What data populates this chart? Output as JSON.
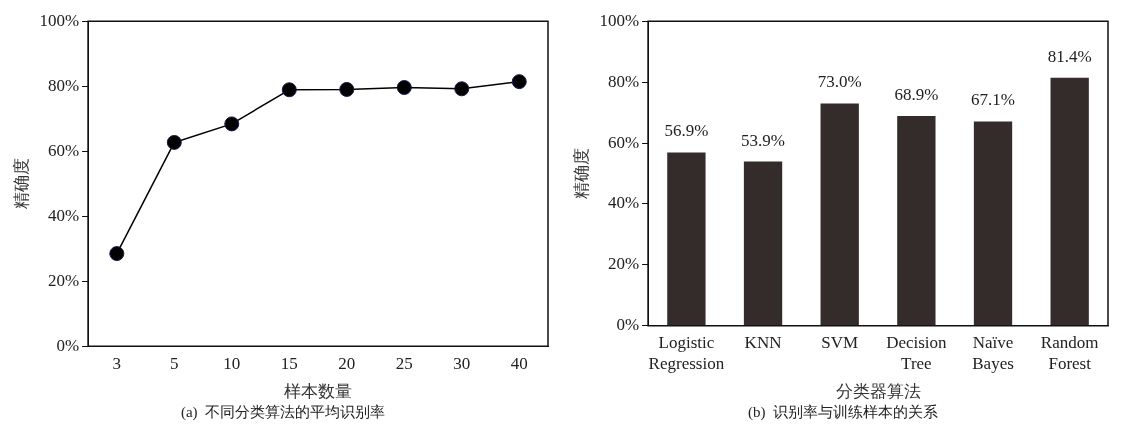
{
  "chart_data": [
    {
      "type": "line",
      "categories": [
        "3",
        "5",
        "10",
        "15",
        "20",
        "25",
        "30",
        "40"
      ],
      "series": [
        {
          "color": "#000000",
          "values": [
            28.5,
            62.7,
            68.4,
            78.9,
            79.0,
            79.6,
            79.2,
            81.4
          ]
        }
      ],
      "xlabel": "样本数量",
      "ylabel": "精确度",
      "ylim": [
        0,
        100
      ],
      "yticks": [
        {
          "value": 0,
          "label": "0%"
        },
        {
          "value": 20,
          "label": "20%"
        },
        {
          "value": 40,
          "label": "40%"
        },
        {
          "value": 60,
          "label": "60%"
        },
        {
          "value": 80,
          "label": "80%"
        },
        {
          "value": 100,
          "label": "100%"
        }
      ],
      "marker": "circle",
      "line_style": "solid",
      "grid": false,
      "legend": false,
      "annotations": [
        "(a)  不同分类算法的平均识别率"
      ]
    },
    {
      "type": "bar",
      "categories": [
        "Logistic\nRegression",
        "KNN",
        "SVM",
        "Decision\nTree",
        "Naïve\nBayes",
        "Random\nForest"
      ],
      "values": [
        56.9,
        53.9,
        73.0,
        68.9,
        67.1,
        81.4
      ],
      "color": "#332c2a",
      "value_labels": [
        "56.9%",
        "53.9%",
        "73.0%",
        "68.9%",
        "67.1%",
        "81.4%"
      ],
      "xlabel": "分类器算法",
      "ylabel": "精确度",
      "ylim": [
        0,
        100
      ],
      "yticks": [
        {
          "value": 0,
          "label": "0%"
        },
        {
          "value": 20,
          "label": "20%"
        },
        {
          "value": 40,
          "label": "40%"
        },
        {
          "value": 60,
          "label": "60%"
        },
        {
          "value": 80,
          "label": "80%"
        },
        {
          "value": 100,
          "label": "100%"
        }
      ],
      "grid": false,
      "legend": false,
      "annotations": [
        "(b)  识别率与训练样本的关系"
      ]
    }
  ]
}
